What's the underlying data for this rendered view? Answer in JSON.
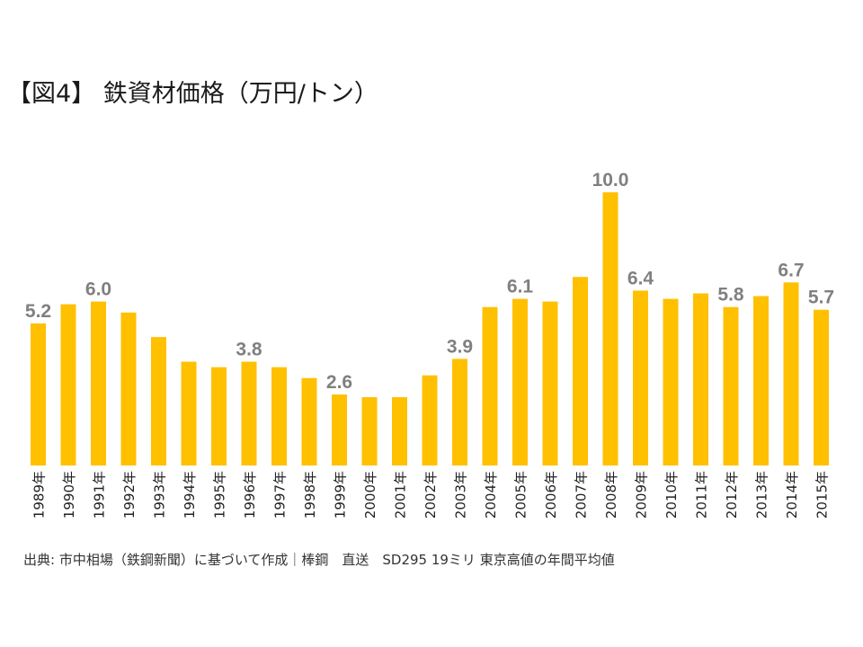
{
  "chart_data": {
    "type": "bar",
    "title": "【図4】 鉄資材価格（万円/トン）",
    "categories": [
      "1989年",
      "1990年",
      "1991年",
      "1992年",
      "1993年",
      "1994年",
      "1995年",
      "1996年",
      "1997年",
      "1998年",
      "1999年",
      "2000年",
      "2001年",
      "2002年",
      "2003年",
      "2004年",
      "2005年",
      "2006年",
      "2007年",
      "2008年",
      "2009年",
      "2010年",
      "2011年",
      "2012年",
      "2013年",
      "2014年",
      "2015年"
    ],
    "values": [
      5.2,
      5.9,
      6.0,
      5.6,
      4.7,
      3.8,
      3.6,
      3.8,
      3.6,
      3.2,
      2.6,
      2.5,
      2.5,
      3.3,
      3.9,
      5.8,
      6.1,
      6.0,
      6.9,
      10.0,
      6.4,
      6.1,
      6.3,
      5.8,
      6.2,
      6.7,
      5.7
    ],
    "data_labels": [
      "5.2",
      "",
      "6.0",
      "",
      "",
      "",
      "",
      "3.8",
      "",
      "",
      "2.6",
      "",
      "",
      "",
      "3.9",
      "",
      "6.1",
      "",
      "",
      "10.0",
      "6.4",
      "",
      "",
      "5.8",
      "",
      "6.7",
      "5.7"
    ],
    "ylim": [
      0,
      10.0
    ],
    "grid": false,
    "bar_color": "#ffc000",
    "label_color": "#808080"
  },
  "source": "出典: 市中相場（鉄鋼新聞）に基づいて作成｜棒鋼　直送　SD295 19ミリ 東京高値の年間平均値"
}
